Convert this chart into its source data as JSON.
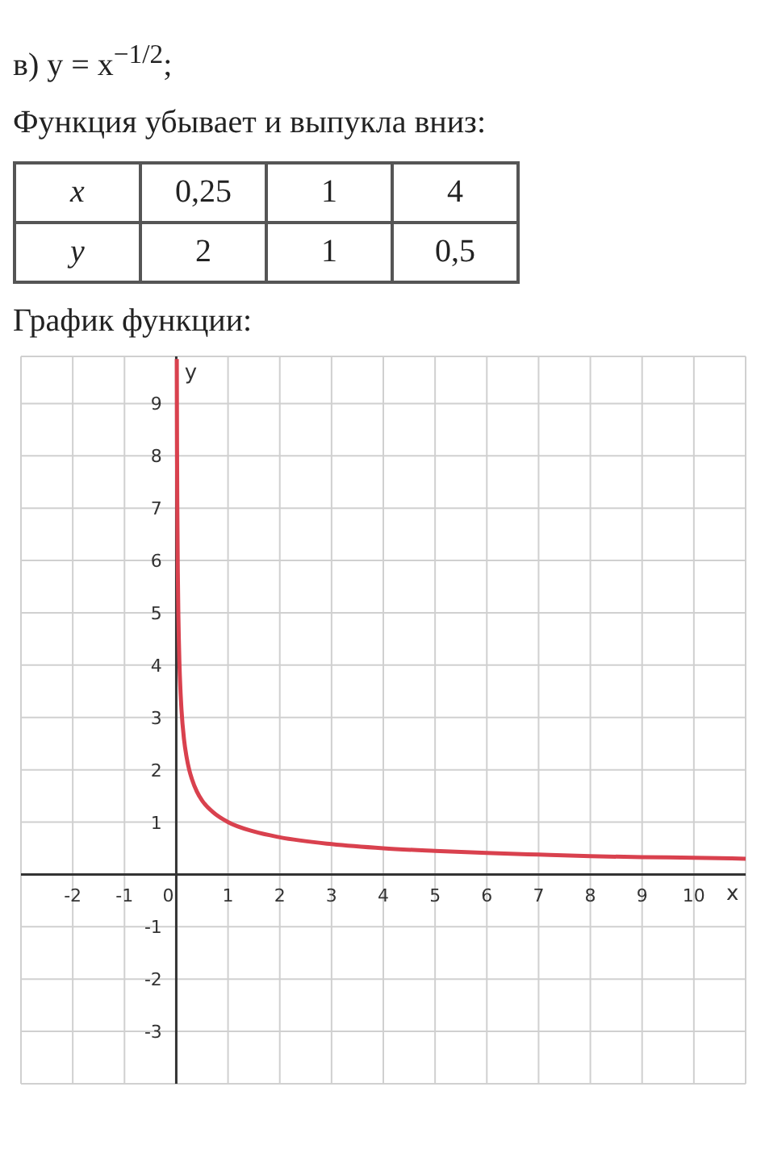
{
  "chart_data": [
    {
      "type": "other",
      "title": "в) y = x$^{−1/2}$;",
      "subtitle": "Функция убывает и выпукла вниз:",
      "annotations": [
        "x",
        "0,25",
        "1",
        "4",
        "y",
        "2",
        "1",
        "0,5",
        "График функции:"
      ]
    },
    {
      "type": "line",
      "xlabel": "x",
      "ylabel": "y",
      "series": [
        {
          "color": "#d9414e",
          "x": [
            0.0103,
            0.015,
            0.02,
            0.03,
            0.04,
            0.06,
            0.08,
            0.1,
            0.15,
            0.2,
            0.25,
            0.3,
            0.4,
            0.5,
            0.7,
            1,
            1.5,
            2,
            3,
            4,
            5,
            6,
            7,
            8,
            9,
            10,
            11
          ],
          "values": [
            9.85,
            8.16,
            7.07,
            5.77,
            5,
            4.08,
            3.54,
            3.16,
            2.58,
            2.24,
            2,
            1.83,
            1.58,
            1.41,
            1.2,
            1,
            0.82,
            0.71,
            0.58,
            0.5,
            0.45,
            0.41,
            0.38,
            0.35,
            0.33,
            0.32,
            0.3
          ]
        }
      ],
      "xlim": [
        -3,
        11
      ],
      "ylim": [
        -4,
        9.9
      ],
      "xticks": [
        -2,
        -1,
        0,
        1,
        2,
        3,
        4,
        5,
        6,
        7,
        8,
        9,
        10
      ],
      "yticks": [
        -3,
        -2,
        -1,
        {
          "value": 0,
          "label": null
        },
        1,
        2,
        3,
        4,
        5,
        6,
        7,
        8,
        9
      ],
      "grid": true,
      "marker": "none",
      "line_style": "solid"
    }
  ]
}
